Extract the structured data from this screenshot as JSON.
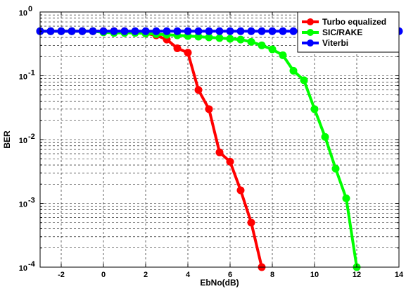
{
  "chart_data": {
    "type": "line",
    "title": "",
    "xlabel": "EbNo(dB)",
    "ylabel": "BER",
    "xlim": [
      -3,
      14
    ],
    "ylim": [
      0.0001,
      1
    ],
    "yscale": "log",
    "xticks": [
      -2,
      0,
      2,
      4,
      6,
      8,
      10,
      12,
      14
    ],
    "yticks": [
      {
        "value": 1,
        "base": "10",
        "exp": "0"
      },
      {
        "value": 0.1,
        "base": "10",
        "exp": "-1"
      },
      {
        "value": 0.01,
        "base": "10",
        "exp": "-2"
      },
      {
        "value": 0.001,
        "base": "10",
        "exp": "-3"
      },
      {
        "value": 0.0001,
        "base": "10",
        "exp": "-4"
      }
    ],
    "grid": true,
    "legend_position": "top-right",
    "series": [
      {
        "name": "Turbo equalized",
        "color": "#ff0000",
        "x": [
          -3,
          -2.5,
          -2,
          -1.5,
          -1,
          -0.5,
          0,
          0.5,
          1,
          1.5,
          2,
          2.5,
          3,
          3.5,
          4,
          4.5,
          5,
          5.5,
          6,
          6.5,
          7,
          7.5
        ],
        "values": [
          0.5,
          0.5,
          0.5,
          0.5,
          0.5,
          0.5,
          0.5,
          0.5,
          0.5,
          0.49,
          0.46,
          0.43,
          0.37,
          0.27,
          0.23,
          0.06,
          0.03,
          0.0063,
          0.0045,
          0.0016,
          0.0005,
          0.0001
        ]
      },
      {
        "name": "SIC/RAKE",
        "color": "#00ff00",
        "x": [
          -3,
          -2.5,
          -2,
          -1.5,
          -1,
          -0.5,
          0,
          0.5,
          1,
          1.5,
          2,
          2.5,
          3,
          3.5,
          4,
          4.5,
          5,
          5.5,
          6,
          6.5,
          7,
          7.5,
          8,
          8.5,
          9,
          9.5,
          10,
          10.5,
          11,
          11.5,
          12
        ],
        "values": [
          0.5,
          0.5,
          0.5,
          0.5,
          0.5,
          0.5,
          0.48,
          0.47,
          0.47,
          0.47,
          0.46,
          0.45,
          0.44,
          0.43,
          0.42,
          0.41,
          0.4,
          0.39,
          0.38,
          0.37,
          0.34,
          0.3,
          0.26,
          0.21,
          0.12,
          0.085,
          0.03,
          0.011,
          0.0035,
          0.0012,
          0.0001
        ]
      },
      {
        "name": "Viterbi",
        "color": "#0000ff",
        "x": [
          -3,
          -2.5,
          -2,
          -1.5,
          -1,
          -0.5,
          0,
          0.5,
          1,
          1.5,
          2,
          2.5,
          3,
          3.5,
          4,
          4.5,
          5,
          5.5,
          6,
          6.5,
          7,
          7.5,
          8,
          8.5,
          9,
          9.5,
          10,
          10.5,
          11,
          11.5,
          12,
          12.5,
          13,
          13.5,
          14
        ],
        "values": [
          0.5,
          0.5,
          0.5,
          0.5,
          0.5,
          0.5,
          0.5,
          0.5,
          0.5,
          0.5,
          0.5,
          0.5,
          0.5,
          0.5,
          0.5,
          0.5,
          0.5,
          0.5,
          0.5,
          0.5,
          0.5,
          0.5,
          0.5,
          0.5,
          0.5,
          0.5,
          0.5,
          0.5,
          0.5,
          0.5,
          0.5,
          0.5,
          0.5,
          0.5,
          0.5
        ]
      }
    ]
  }
}
